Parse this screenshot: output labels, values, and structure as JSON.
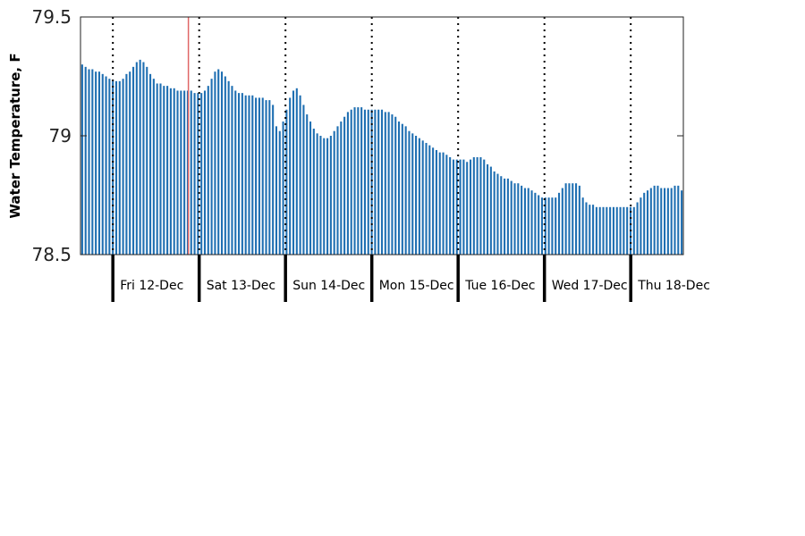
{
  "chart_data": {
    "type": "bar",
    "ylabel": "Water Temperature, F",
    "xlabel": "",
    "ylim": [
      78.5,
      79.5
    ],
    "yticks": [
      78.5,
      79,
      79.5
    ],
    "ytick_labels": [
      "78.5",
      "79",
      "79.5"
    ],
    "bar_color": "#1f6fb2",
    "marker_color": "#e06666",
    "day_labels": [
      "Fri 12-Dec",
      "Sat 13-Dec",
      "Sun 14-Dec",
      "Mon 15-Dec",
      "Tue 16-Dec",
      "Wed 17-Dec",
      "Thu 18-Dec"
    ],
    "hours_before_first_day": 9,
    "current_time_hour_of_first_day": 21,
    "grid": "vertical dotted lines at midnight",
    "values": [
      79.3,
      79.29,
      79.28,
      79.28,
      79.27,
      79.27,
      79.26,
      79.25,
      79.24,
      79.23,
      79.23,
      79.23,
      79.24,
      79.26,
      79.27,
      79.29,
      79.31,
      79.32,
      79.31,
      79.29,
      79.26,
      79.24,
      79.22,
      79.22,
      79.21,
      79.21,
      79.2,
      79.2,
      79.19,
      79.19,
      79.19,
      79.19,
      79.19,
      79.18,
      79.18,
      79.18,
      79.19,
      79.21,
      79.24,
      79.27,
      79.28,
      79.27,
      79.25,
      79.23,
      79.21,
      79.19,
      79.18,
      79.18,
      79.17,
      79.17,
      79.17,
      79.16,
      79.16,
      79.16,
      79.15,
      79.15,
      79.13,
      79.04,
      79.02,
      79.06,
      79.11,
      79.16,
      79.19,
      79.2,
      79.17,
      79.13,
      79.09,
      79.06,
      79.03,
      79.01,
      79.0,
      78.99,
      78.99,
      79.0,
      79.02,
      79.04,
      79.06,
      79.08,
      79.1,
      79.11,
      79.12,
      79.12,
      79.12,
      79.11,
      79.11,
      79.11,
      79.11,
      79.11,
      79.11,
      79.1,
      79.1,
      79.09,
      79.08,
      79.06,
      79.05,
      79.04,
      79.02,
      79.01,
      79.0,
      78.99,
      78.98,
      78.97,
      78.96,
      78.95,
      78.94,
      78.93,
      78.93,
      78.92,
      78.91,
      78.9,
      78.9,
      78.9,
      78.9,
      78.89,
      78.9,
      78.91,
      78.91,
      78.91,
      78.9,
      78.88,
      78.87,
      78.85,
      78.84,
      78.83,
      78.82,
      78.82,
      78.81,
      78.8,
      78.8,
      78.79,
      78.78,
      78.78,
      78.77,
      78.76,
      78.75,
      78.74,
      78.74,
      78.74,
      78.74,
      78.74,
      78.76,
      78.78,
      78.8,
      78.8,
      78.8,
      78.8,
      78.79,
      78.74,
      78.72,
      78.71,
      78.71,
      78.7,
      78.7,
      78.7,
      78.7,
      78.7,
      78.7,
      78.7,
      78.7,
      78.7,
      78.7,
      78.7,
      78.7,
      78.72,
      78.74,
      78.76,
      78.77,
      78.78,
      78.79,
      78.79,
      78.78,
      78.78,
      78.78,
      78.78,
      78.79,
      78.79,
      78.77
    ]
  }
}
